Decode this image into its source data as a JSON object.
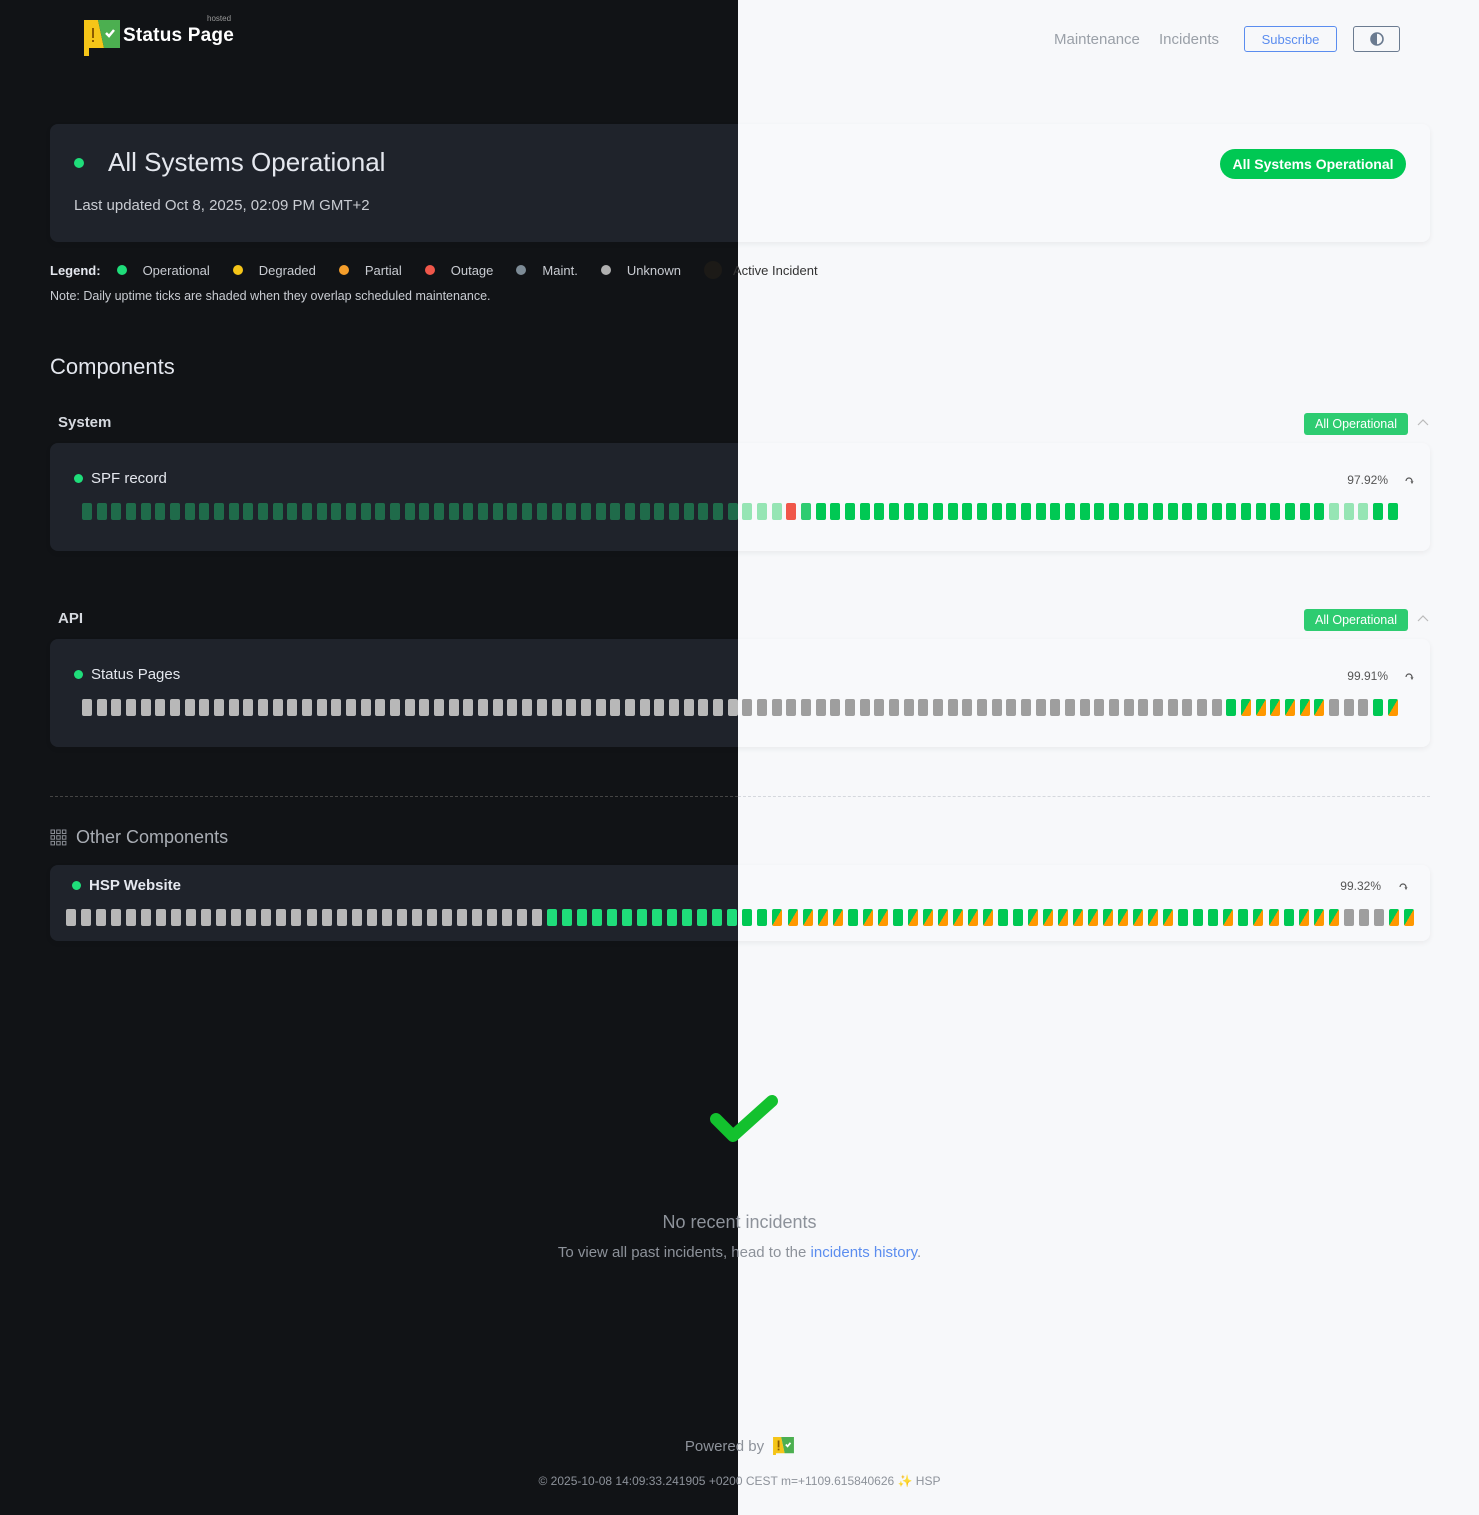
{
  "header": {
    "logo_text": "Status Page",
    "logo_hosted": "hosted",
    "nav": [
      {
        "label": "Maintenance"
      },
      {
        "label": "Incidents"
      }
    ],
    "subscribe_label": "Subscribe",
    "theme_toggle_icon": "half-circle-contrast-icon"
  },
  "status": {
    "title": "All Systems Operational",
    "last_updated": "Last updated Oct 8, 2025, 02:09 PM GMT+2",
    "badge": "All Systems Operational",
    "color": "#00c853"
  },
  "legend": {
    "label": "Legend:",
    "items": [
      {
        "label": "Operational",
        "color": "#1fdd7a"
      },
      {
        "label": "Degraded",
        "color": "#f5c518"
      },
      {
        "label": "Partial",
        "color": "#f59e2b"
      },
      {
        "label": "Outage",
        "color": "#f0574a"
      },
      {
        "label": "Maint.",
        "color": "#7d8b96"
      },
      {
        "label": "Unknown",
        "color": "#b0b0b0"
      },
      {
        "label": "Active Incident",
        "color": "#1c1a17"
      }
    ],
    "note": "Note: Daily uptime ticks are shaded when they overlap scheduled maintenance."
  },
  "components_title": "Components",
  "groups": [
    {
      "name": "System",
      "badge": "All Operational",
      "components": [
        {
          "name": "SPF record",
          "uptime": "97.92%",
          "ticks": [
            "op-light",
            "op-light",
            "op-light",
            "op-light",
            "op-light",
            "op-light",
            "op-light",
            "op-light",
            "op-light",
            "op-light",
            "op-light",
            "op-light",
            "op-light",
            "op-light",
            "op-light",
            "op-light",
            "op-light",
            "op-light",
            "op-light",
            "op-light",
            "op-light",
            "op-light",
            "op-light",
            "op-light",
            "op-light",
            "op-light",
            "op-light",
            "op-light",
            "op-light",
            "op-light",
            "op-light",
            "op-light",
            "op-light",
            "op-light",
            "op-light",
            "op-light",
            "op-light",
            "op-light",
            "op-light",
            "op-light",
            "op-light",
            "op-light",
            "op-light",
            "op-light",
            "op-light",
            "op-light",
            "op-light",
            "op-light",
            "outage",
            "op-mid",
            "op",
            "op",
            "op",
            "op",
            "op",
            "op",
            "op",
            "op",
            "op",
            "op",
            "op",
            "op",
            "op",
            "op",
            "op",
            "op",
            "op",
            "op",
            "op",
            "op",
            "op",
            "op",
            "op",
            "op",
            "op",
            "op",
            "op",
            "op",
            "op",
            "op",
            "op",
            "op",
            "op",
            "op",
            "op",
            "op-light",
            "op-light",
            "op-light",
            "op",
            "op"
          ]
        }
      ]
    },
    {
      "name": "API",
      "badge": "All Operational",
      "components": [
        {
          "name": "Status Pages",
          "uptime": "99.91%",
          "ticks": [
            "unknown",
            "unknown",
            "unknown",
            "unknown",
            "unknown",
            "unknown",
            "unknown",
            "unknown",
            "unknown",
            "unknown",
            "unknown",
            "unknown",
            "unknown",
            "unknown",
            "unknown",
            "unknown",
            "unknown",
            "unknown",
            "unknown",
            "unknown",
            "unknown",
            "unknown",
            "unknown",
            "unknown",
            "unknown",
            "unknown",
            "unknown",
            "unknown",
            "unknown",
            "unknown",
            "unknown",
            "unknown",
            "unknown",
            "unknown",
            "unknown",
            "unknown",
            "unknown",
            "unknown",
            "unknown",
            "unknown",
            "unknown",
            "unknown",
            "unknown",
            "unknown",
            "unknown",
            "unknown",
            "unknown",
            "unknown",
            "unknown",
            "unknown",
            "unknown",
            "unknown",
            "unknown",
            "unknown",
            "unknown",
            "unknown",
            "unknown",
            "unknown",
            "unknown",
            "unknown",
            "unknown",
            "unknown",
            "unknown",
            "unknown",
            "unknown",
            "unknown",
            "unknown",
            "unknown",
            "unknown",
            "unknown",
            "unknown",
            "unknown",
            "unknown",
            "unknown",
            "unknown",
            "unknown",
            "unknown",
            "unknown",
            "op",
            "partial",
            "partial",
            "partial",
            "partial",
            "partial",
            "partial",
            "unknown",
            "unknown",
            "unknown",
            "op",
            "partial"
          ]
        }
      ]
    }
  ],
  "other": {
    "title": "Other Components",
    "components": [
      {
        "name": "HSP Website",
        "uptime": "99.32%",
        "ticks": [
          "unknown",
          "unknown",
          "unknown",
          "unknown",
          "unknown",
          "unknown",
          "unknown",
          "unknown",
          "unknown",
          "unknown",
          "unknown",
          "unknown",
          "unknown",
          "unknown",
          "unknown",
          "unknown",
          "unknown",
          "unknown",
          "unknown",
          "unknown",
          "unknown",
          "unknown",
          "unknown",
          "unknown",
          "unknown",
          "unknown",
          "unknown",
          "unknown",
          "unknown",
          "unknown",
          "unknown",
          "unknown",
          "op",
          "op",
          "op",
          "op",
          "op",
          "op",
          "op",
          "op",
          "op",
          "op",
          "op",
          "op",
          "op",
          "op",
          "op",
          "partial",
          "partial",
          "partial",
          "partial",
          "partial",
          "op",
          "partial",
          "partial",
          "op",
          "partial",
          "partial",
          "partial",
          "partial",
          "partial",
          "partial",
          "op",
          "op",
          "partial",
          "partial",
          "partial",
          "partial",
          "partial",
          "partial",
          "partial",
          "partial",
          "partial",
          "partial",
          "op",
          "op",
          "op",
          "partial",
          "op",
          "partial",
          "partial",
          "op",
          "partial",
          "partial",
          "partial",
          "unknown",
          "unknown",
          "unknown",
          "partial",
          "partial"
        ]
      }
    ]
  },
  "incidents": {
    "title": "No recent incidents",
    "text": "To view all past incidents, head to the ",
    "link": "incidents history",
    "after": "."
  },
  "footer": {
    "powered_by": "Powered by",
    "build": "© 2025-10-08 14:09:33.241905 +0200 CEST m=+1109.615840626 ✨ HSP"
  }
}
